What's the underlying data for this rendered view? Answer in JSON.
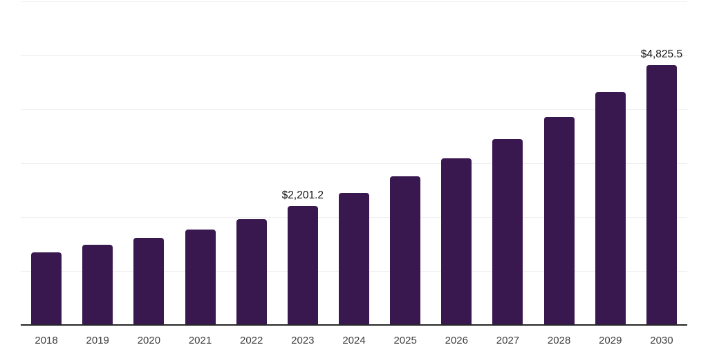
{
  "chart_data": {
    "type": "bar",
    "title": "",
    "xlabel": "",
    "ylabel": "",
    "categories": [
      "2018",
      "2019",
      "2020",
      "2021",
      "2022",
      "2023",
      "2024",
      "2025",
      "2026",
      "2027",
      "2028",
      "2029",
      "2030"
    ],
    "values": [
      1350,
      1490,
      1620,
      1775,
      1965,
      2201.2,
      2450,
      2755,
      3090,
      3445,
      3855,
      4315,
      4825.5
    ],
    "data_labels": [
      null,
      null,
      null,
      null,
      null,
      "$2,201.2",
      null,
      null,
      null,
      null,
      null,
      null,
      "$4,825.5"
    ],
    "ylim": [
      0,
      6000
    ],
    "grid_interval": 1000,
    "grid": "horizontal-only",
    "y_axis_labels_visible": false,
    "legend": "none",
    "colors": {
      "bar": "#39184f",
      "axis_line": "#262626",
      "gridline": "#f0f0f1",
      "tick_label": "#3d3d3d",
      "data_label": "#141414",
      "background": "#ffffff"
    }
  }
}
